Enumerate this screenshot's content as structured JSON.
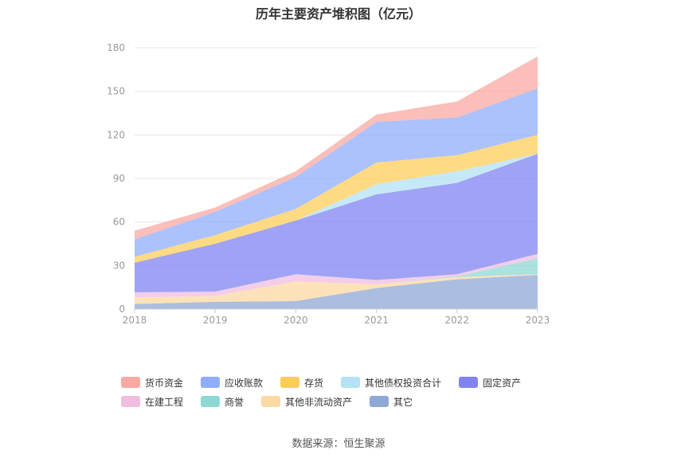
{
  "source": "数据来源：恒生聚源",
  "chart_data": {
    "type": "area",
    "stacked": true,
    "title": "历年主要资产堆积图（亿元）",
    "x": [
      "2018",
      "2019",
      "2020",
      "2021",
      "2022",
      "2023"
    ],
    "ylim": [
      0,
      180
    ],
    "yticks": [
      0,
      30,
      60,
      90,
      120,
      150,
      180
    ],
    "grid": true,
    "legend_position": "bottom",
    "series": [
      {
        "name": "其它",
        "color": "#8fa8d6",
        "values": [
          3.5,
          5,
          5.5,
          14.5,
          20.5,
          23.5
        ]
      },
      {
        "name": "其他非流动资产",
        "color": "#fcd8a2",
        "values": [
          4.5,
          4,
          13.5,
          2.5,
          1.5,
          0.5
        ]
      },
      {
        "name": "商誉",
        "color": "#8ed8d4",
        "values": [
          0,
          0,
          0,
          0,
          0.5,
          11
        ]
      },
      {
        "name": "在建工程",
        "color": "#eebde0",
        "values": [
          3.5,
          3,
          5,
          3,
          1.5,
          3
        ]
      },
      {
        "name": "固定资产",
        "color": "#8084f2",
        "values": [
          20.5,
          33,
          37,
          59,
          63,
          69
        ]
      },
      {
        "name": "其他债权投资合计",
        "color": "#b3e2f6",
        "values": [
          0,
          0,
          0,
          7,
          8,
          0
        ]
      },
      {
        "name": "存货",
        "color": "#fdcd59",
        "values": [
          4,
          6,
          8,
          15,
          11,
          13
        ]
      },
      {
        "name": "应收账款",
        "color": "#90adfb",
        "values": [
          12,
          16,
          22,
          28,
          26,
          32
        ]
      },
      {
        "name": "货币资金",
        "color": "#f9a8a2",
        "values": [
          6,
          3,
          4,
          5,
          11,
          22
        ]
      }
    ],
    "legend_order": [
      "货币资金",
      "应收账款",
      "存货",
      "其他债权投资合计",
      "固定资产",
      "在建工程",
      "商誉",
      "其他非流动资产",
      "其它"
    ]
  }
}
